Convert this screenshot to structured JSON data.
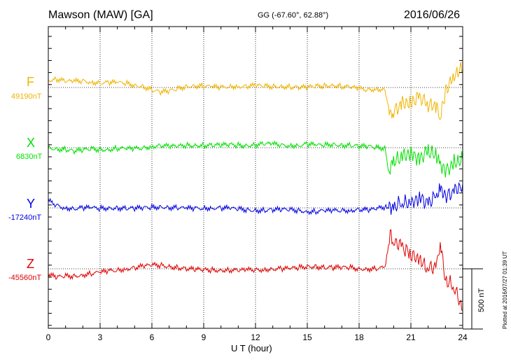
{
  "header": {
    "station": "Mawson (MAW)  [GA]",
    "coords": "GG (-67.60°,  62.88°)",
    "date": "2016/06/26"
  },
  "plotted_note": "Plotted at 2016/07/27 01:39 UT",
  "chart_data": {
    "type": "line",
    "title": "Mawson (MAW)  [GA]",
    "xlabel": "U T (hour)",
    "xlim": [
      0,
      24
    ],
    "x_ticks": [
      "0",
      "3",
      "6",
      "9",
      "12",
      "15",
      "18",
      "21",
      "24"
    ],
    "grid": true,
    "scale_bar": {
      "label": "500 nT",
      "value_nT": 500
    },
    "x": [
      0,
      0.5,
      1,
      1.5,
      2,
      2.5,
      3,
      3.5,
      4,
      4.5,
      5,
      5.5,
      6,
      6.5,
      7,
      7.5,
      8,
      8.5,
      9,
      9.5,
      10,
      10.5,
      11,
      11.5,
      12,
      12.5,
      13,
      13.5,
      14,
      14.5,
      15,
      15.5,
      16,
      16.5,
      17,
      17.5,
      18,
      18.5,
      19,
      19.5,
      19.7,
      19.8,
      20,
      20.5,
      21,
      21.5,
      22,
      22.5,
      22.7,
      23,
      23.5,
      24
    ],
    "series": [
      {
        "name": "F",
        "baseline_label": "49190nT",
        "color": "#f0b400",
        "values": [
          60,
          70,
          50,
          50,
          55,
          45,
          40,
          40,
          40,
          35,
          20,
          10,
          -20,
          -40,
          -30,
          -10,
          10,
          15,
          10,
          5,
          0,
          10,
          10,
          10,
          15,
          10,
          10,
          10,
          5,
          0,
          0,
          10,
          15,
          20,
          10,
          0,
          -10,
          -20,
          -10,
          -20,
          -150,
          -230,
          -200,
          -130,
          -120,
          -80,
          -140,
          -170,
          -250,
          -30,
          110,
          150
        ]
      },
      {
        "name": "X",
        "baseline_label": "6830nT",
        "color": "#00e000",
        "values": [
          0,
          -10,
          -15,
          -30,
          -20,
          -10,
          -15,
          -15,
          -5,
          -10,
          -10,
          0,
          10,
          20,
          10,
          10,
          20,
          20,
          20,
          20,
          20,
          25,
          20,
          20,
          25,
          30,
          30,
          20,
          20,
          20,
          30,
          20,
          20,
          30,
          20,
          20,
          10,
          10,
          0,
          0,
          -180,
          -160,
          -120,
          -80,
          -40,
          -90,
          -20,
          -80,
          -150,
          -200,
          -120,
          -100
        ]
      },
      {
        "name": "Y",
        "baseline_label": "-17240nT",
        "color": "#0000e0",
        "values": [
          60,
          20,
          0,
          -5,
          0,
          0,
          -5,
          0,
          0,
          -5,
          -5,
          0,
          5,
          10,
          5,
          0,
          -5,
          -5,
          0,
          0,
          0,
          -5,
          -10,
          -15,
          -20,
          -20,
          -15,
          -15,
          -15,
          -20,
          -30,
          -30,
          -25,
          -25,
          -20,
          -20,
          -10,
          -20,
          -10,
          10,
          -20,
          20,
          0,
          50,
          20,
          100,
          30,
          130,
          160,
          90,
          130,
          200
        ]
      },
      {
        "name": "Z",
        "baseline_label": "-45560nT",
        "color": "#e00000",
        "values": [
          -50,
          -70,
          -60,
          -60,
          -50,
          -40,
          -30,
          -20,
          -10,
          0,
          10,
          20,
          30,
          30,
          20,
          10,
          0,
          -5,
          -10,
          -10,
          -10,
          -10,
          -15,
          -10,
          -10,
          -5,
          0,
          0,
          0,
          10,
          20,
          20,
          10,
          10,
          10,
          10,
          0,
          0,
          0,
          10,
          180,
          280,
          240,
          180,
          120,
          60,
          10,
          20,
          250,
          -100,
          -150,
          -350
        ]
      }
    ]
  }
}
